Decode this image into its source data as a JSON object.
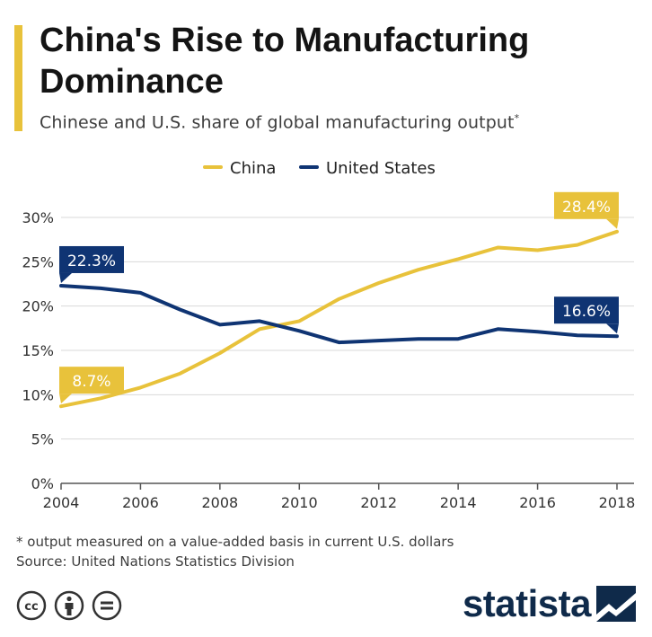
{
  "header": {
    "title": "China's Rise to Manufacturing Dominance",
    "subtitle": "Chinese and U.S. share of global manufacturing output",
    "subtitle_mark": "*"
  },
  "colors": {
    "accent": "#e8c23b",
    "china": "#e8c23b",
    "us": "#0f3473",
    "brand": "#0f2a4a",
    "grid": "#d9d9d9"
  },
  "chart_data": {
    "type": "line",
    "x": [
      2004,
      2005,
      2006,
      2007,
      2008,
      2009,
      2010,
      2011,
      2012,
      2013,
      2014,
      2015,
      2016,
      2017,
      2018
    ],
    "series": [
      {
        "name": "China",
        "color": "#e8c23b",
        "values": [
          8.7,
          9.6,
          10.8,
          12.4,
          14.7,
          17.4,
          18.3,
          20.8,
          22.6,
          24.1,
          25.3,
          26.6,
          26.3,
          26.9,
          28.4
        ]
      },
      {
        "name": "United States",
        "color": "#0f3473",
        "values": [
          22.3,
          22.0,
          21.5,
          19.6,
          17.9,
          18.3,
          17.2,
          15.9,
          16.1,
          16.3,
          16.3,
          17.4,
          17.1,
          16.7,
          16.6
        ]
      }
    ],
    "xticks": [
      "2004",
      "2006",
      "2008",
      "2010",
      "2012",
      "2014",
      "2016",
      "2018"
    ],
    "yticks": [
      "0%",
      "5%",
      "10%",
      "15%",
      "20%",
      "25%",
      "30%"
    ],
    "ylim": [
      0,
      30
    ],
    "xlim": [
      2004,
      2018
    ],
    "grid": "horizontal",
    "legend_position": "top-center",
    "annotations": [
      {
        "series": "China",
        "year": 2004,
        "text": "8.7%"
      },
      {
        "series": "China",
        "year": 2018,
        "text": "28.4%"
      },
      {
        "series": "United States",
        "year": 2004,
        "text": "22.3%"
      },
      {
        "series": "United States",
        "year": 2018,
        "text": "16.6%"
      }
    ]
  },
  "footer": {
    "footnote": "* output measured on a value-added basis in current U.S. dollars",
    "source": "Source: United Nations Statistics Division",
    "brand": "statista",
    "license_icons": [
      "creative-commons-icon",
      "attribution-icon",
      "no-derivatives-icon"
    ]
  }
}
